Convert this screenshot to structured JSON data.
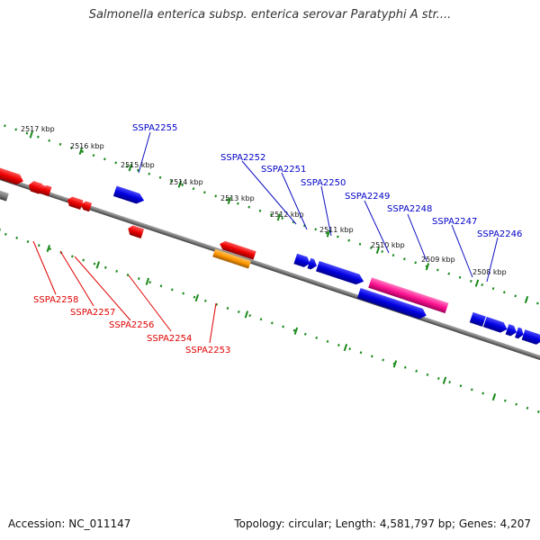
{
  "title": "Salmonella enterica subsp. enterica serovar Paratyphi A str....",
  "footer": {
    "accession": "Accession: NC_011147",
    "summary": "Topology: circular; Length: 4,581,797 bp; Genes: 4,207"
  },
  "colors": {
    "forward": "#0000e0",
    "reverse": "#ee0000",
    "rrna": "#ff1493",
    "other": "#ff9900",
    "backbone": "#7a7a7a",
    "ticks": "#1a8a1a"
  },
  "scale_ticks": [
    "2508 kbp",
    "2509 kbp",
    "2510 kbp",
    "2511 kbp",
    "2512 kbp",
    "2513 kbp",
    "2514 kbp",
    "2515 kbp",
    "2516 kbp",
    "2517 kbp"
  ],
  "genes_forward": [
    "SSPA2246",
    "SSPA2247",
    "SSPA2248",
    "SSPA2249",
    "SSPA2250",
    "SSPA2251",
    "SSPA2252",
    "SSPA2255"
  ],
  "genes_reverse": [
    "SSPA2253",
    "SSPA2254",
    "SSPA2256",
    "SSPA2257",
    "SSPA2258"
  ]
}
